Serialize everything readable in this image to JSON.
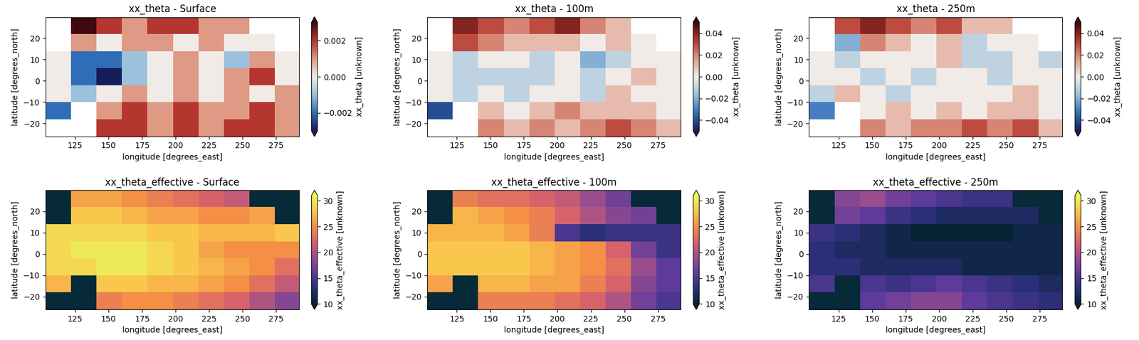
{
  "chart_data": [
    {
      "type": "heatmap",
      "title": "xx_theta - Surface",
      "x_label": "longitude [degrees_east]",
      "y_label": "latitude [degrees_north]",
      "xlim": [
        103,
        292
      ],
      "ylim": [
        -26,
        30
      ],
      "xticks": [
        125,
        150,
        175,
        200,
        225,
        250,
        275
      ],
      "yticks": [
        {
          "value": -20,
          "label": "−20"
        },
        {
          "value": -10,
          "label": "−10"
        },
        0,
        10,
        20
      ],
      "x": [
        103,
        122,
        141,
        160,
        179,
        198,
        217,
        236,
        255,
        274,
        292
      ],
      "y": [
        -26,
        -18,
        -10,
        -2,
        6,
        14,
        22,
        30
      ],
      "cells": [
        [
          null,
          null,
          0.002,
          0.002,
          0.001,
          0.002,
          0.001,
          0.002,
          0.002,
          0.001
        ],
        [
          -0.002,
          null,
          0.001,
          0.002,
          0.001,
          0.002,
          0.001,
          0.001,
          0.002,
          0.001
        ],
        [
          0.0,
          -0.001,
          0.0,
          0.001,
          0.0,
          0.001,
          0.0,
          0.001,
          0.0,
          0.001
        ],
        [
          0.0,
          -0.002,
          -0.003,
          -0.001,
          0.0,
          0.001,
          0.0,
          0.001,
          0.002,
          0.0
        ],
        [
          0.0,
          -0.002,
          -0.002,
          -0.001,
          0.0,
          0.001,
          0.0,
          -0.001,
          0.001,
          0.0
        ],
        [
          null,
          0.001,
          0.0,
          0.001,
          0.001,
          0.0,
          0.001,
          0.0,
          0.0,
          null
        ],
        [
          null,
          0.003,
          0.002,
          0.001,
          0.002,
          0.002,
          0.001,
          0.001,
          null,
          null
        ]
      ],
      "colorbar": {
        "label": "xx_theta [unknown]",
        "range": [
          -0.003,
          0.003
        ],
        "ticks": [
          {
            "value": -0.002,
            "label": "−0.002"
          },
          {
            "value": 0,
            "label": "0.000"
          },
          0.002
        ]
      }
    },
    {
      "type": "heatmap",
      "title": "xx_theta - 100m",
      "x_label": "longitude [degrees_east]",
      "y_label": "latitude [degrees_north]",
      "xlim": [
        103,
        292
      ],
      "ylim": [
        -26,
        30
      ],
      "xticks": [
        125,
        150,
        175,
        200,
        225,
        250,
        275
      ],
      "yticks": [
        {
          "value": -20,
          "label": "−20"
        },
        {
          "value": -10,
          "label": "−10"
        },
        0,
        10,
        20
      ],
      "x": [
        103,
        122,
        141,
        160,
        179,
        198,
        217,
        236,
        255,
        274,
        292
      ],
      "y": [
        -26,
        -18,
        -10,
        -2,
        6,
        14,
        22,
        30
      ],
      "cells": [
        [
          null,
          null,
          0.02,
          0.01,
          0.02,
          0.01,
          0.02,
          0.03,
          0.02,
          0.01
        ],
        [
          -0.04,
          null,
          0.01,
          0.0,
          0.01,
          0.02,
          0.01,
          0.01,
          0.01,
          0.0
        ],
        [
          0.0,
          -0.01,
          0.0,
          -0.01,
          0.0,
          0.0,
          -0.01,
          0.01,
          0.0,
          0.0
        ],
        [
          0.0,
          -0.01,
          -0.01,
          -0.01,
          -0.01,
          0.0,
          -0.01,
          0.0,
          0.01,
          0.0
        ],
        [
          0.0,
          -0.01,
          0.0,
          0.0,
          -0.01,
          0.0,
          -0.02,
          -0.01,
          0.0,
          0.0
        ],
        [
          null,
          0.03,
          0.02,
          0.01,
          0.01,
          0.01,
          0.0,
          0.01,
          0.0,
          null
        ],
        [
          null,
          0.04,
          0.03,
          0.02,
          0.03,
          0.04,
          0.02,
          0.01,
          null,
          null
        ]
      ],
      "colorbar": {
        "label": "xx_theta [unknown]",
        "range": [
          -0.05,
          0.05
        ],
        "ticks": [
          {
            "value": -0.04,
            "label": "−0.04"
          },
          {
            "value": -0.02,
            "label": "−0.02"
          },
          {
            "value": 0,
            "label": "0.00"
          },
          0.02,
          0.04
        ]
      }
    },
    {
      "type": "heatmap",
      "title": "xx_theta - 250m",
      "x_label": "longitude [degrees_east]",
      "y_label": "latitude [degrees_north]",
      "xlim": [
        103,
        292
      ],
      "ylim": [
        -26,
        30
      ],
      "xticks": [
        125,
        150,
        175,
        200,
        225,
        250,
        275
      ],
      "yticks": [
        {
          "value": -20,
          "label": "−20"
        },
        {
          "value": -10,
          "label": "−10"
        },
        0,
        10,
        20
      ],
      "x": [
        103,
        122,
        141,
        160,
        179,
        198,
        217,
        236,
        255,
        274,
        292
      ],
      "y": [
        -26,
        -18,
        -10,
        -2,
        6,
        14,
        22,
        30
      ],
      "cells": [
        [
          null,
          null,
          0.02,
          0.01,
          0.02,
          0.02,
          0.03,
          0.02,
          0.03,
          0.01
        ],
        [
          -0.03,
          null,
          0.0,
          0.01,
          0.0,
          0.01,
          0.0,
          0.01,
          0.01,
          0.0
        ],
        [
          -0.01,
          0.01,
          0.0,
          -0.01,
          0.0,
          0.0,
          0.0,
          0.0,
          0.01,
          0.0
        ],
        [
          0.0,
          0.0,
          -0.01,
          0.0,
          -0.01,
          0.0,
          0.0,
          -0.01,
          0.0,
          0.0
        ],
        [
          0.0,
          -0.01,
          0.0,
          0.0,
          0.0,
          0.01,
          -0.01,
          -0.01,
          0.0,
          -0.01
        ],
        [
          null,
          -0.02,
          0.02,
          0.01,
          0.0,
          0.01,
          -0.01,
          0.0,
          0.0,
          null
        ],
        [
          null,
          0.03,
          0.04,
          0.03,
          0.02,
          0.03,
          0.01,
          0.01,
          null,
          null
        ]
      ],
      "colorbar": {
        "label": "xx_theta [unknown]",
        "range": [
          -0.05,
          0.05
        ],
        "ticks": [
          {
            "value": -0.04,
            "label": "−0.04"
          },
          {
            "value": -0.02,
            "label": "−0.02"
          },
          {
            "value": 0,
            "label": "0.00"
          },
          0.02,
          0.04
        ]
      }
    },
    {
      "type": "heatmap",
      "title": "xx_theta_effective - Surface",
      "x_label": "longitude [degrees_east]",
      "y_label": "latitude [degrees_north]",
      "xlim": [
        103,
        292
      ],
      "ylim": [
        -26,
        30
      ],
      "xticks": [
        125,
        150,
        175,
        200,
        225,
        250,
        275
      ],
      "yticks": [
        {
          "value": -20,
          "label": "−20"
        },
        {
          "value": -10,
          "label": "−10"
        },
        0,
        10,
        20
      ],
      "x": [
        103,
        122,
        141,
        160,
        179,
        198,
        217,
        236,
        255,
        274,
        292
      ],
      "y": [
        -26,
        -18,
        -10,
        -2,
        6,
        14,
        22,
        30
      ],
      "cells": [
        [
          null,
          null,
          24,
          25,
          25,
          24,
          23,
          22,
          20,
          18
        ],
        [
          27,
          null,
          28,
          28,
          27,
          27,
          26,
          25,
          23,
          21
        ],
        [
          29,
          29,
          30,
          30,
          29,
          28,
          27,
          26,
          25,
          23
        ],
        [
          29,
          30,
          30,
          30,
          29,
          28,
          26,
          25,
          25,
          25
        ],
        [
          29,
          29,
          29,
          29,
          28,
          28,
          27,
          27,
          27,
          28
        ],
        [
          null,
          28,
          28,
          27,
          26,
          26,
          25,
          25,
          26,
          null
        ],
        [
          null,
          26,
          26,
          25,
          24,
          23,
          22,
          21,
          null,
          null
        ]
      ],
      "colorbar": {
        "label": "xx_theta_effective [unknown]",
        "range": [
          10,
          31
        ],
        "ticks": [
          10,
          15,
          20,
          25,
          30
        ]
      }
    },
    {
      "type": "heatmap",
      "title": "xx_theta_effective - 100m",
      "x_label": "longitude [degrees_east]",
      "y_label": "latitude [degrees_north]",
      "xlim": [
        103,
        292
      ],
      "ylim": [
        -26,
        30
      ],
      "xticks": [
        125,
        150,
        175,
        200,
        225,
        250,
        275
      ],
      "yticks": [
        {
          "value": -20,
          "label": "−20"
        },
        {
          "value": -10,
          "label": "−10"
        },
        0,
        10,
        20
      ],
      "x": [
        103,
        122,
        141,
        160,
        179,
        198,
        217,
        236,
        255,
        274,
        292
      ],
      "y": [
        -26,
        -18,
        -10,
        -2,
        6,
        14,
        22,
        30
      ],
      "cells": [
        [
          null,
          null,
          24,
          24,
          24,
          23,
          22,
          20,
          17,
          15
        ],
        [
          26,
          null,
          27,
          27,
          26,
          26,
          24,
          22,
          18,
          16
        ],
        [
          28,
          28,
          28,
          28,
          27,
          26,
          25,
          23,
          19,
          16
        ],
        [
          28,
          28,
          28,
          28,
          27,
          26,
          25,
          22,
          17,
          14
        ],
        [
          27,
          27,
          27,
          26,
          24,
          15,
          13,
          14,
          14,
          14
        ],
        [
          null,
          27,
          26,
          25,
          24,
          22,
          20,
          18,
          17,
          null
        ],
        [
          null,
          24,
          23,
          23,
          22,
          21,
          19,
          17,
          null,
          null
        ]
      ],
      "colorbar": {
        "label": "xx_theta_effective [unknown]",
        "range": [
          10,
          31
        ],
        "ticks": [
          10,
          15,
          20,
          25,
          30
        ]
      }
    },
    {
      "type": "heatmap",
      "title": "xx_theta_effective - 250m",
      "x_label": "longitude [degrees_east]",
      "y_label": "latitude [degrees_north]",
      "xlim": [
        103,
        292
      ],
      "ylim": [
        -26,
        30
      ],
      "xticks": [
        125,
        150,
        175,
        200,
        225,
        250,
        275
      ],
      "yticks": [
        {
          "value": -20,
          "label": "−20"
        },
        {
          "value": -10,
          "label": "−10"
        },
        0,
        10,
        20
      ],
      "x": [
        103,
        122,
        141,
        160,
        179,
        198,
        217,
        236,
        255,
        274,
        292
      ],
      "y": [
        -26,
        -18,
        -10,
        -2,
        6,
        14,
        22,
        30
      ],
      "cells": [
        [
          null,
          null,
          16,
          17,
          18,
          18,
          16,
          15,
          14,
          13
        ],
        [
          15,
          null,
          15,
          14,
          15,
          16,
          15,
          14,
          13,
          12
        ],
        [
          13,
          13,
          12,
          12,
          12,
          12,
          11,
          11,
          11,
          11
        ],
        [
          13,
          12,
          12,
          11,
          11,
          11,
          11,
          11,
          11,
          11
        ],
        [
          14,
          13,
          12,
          11,
          10,
          10,
          10,
          10,
          11,
          11
        ],
        [
          null,
          17,
          16,
          14,
          13,
          12,
          12,
          12,
          12,
          null
        ],
        [
          null,
          18,
          19,
          17,
          16,
          15,
          14,
          14,
          null,
          null
        ]
      ],
      "colorbar": {
        "label": "xx_theta_effective [unknown]",
        "range": [
          10,
          31
        ],
        "ticks": [
          10,
          15,
          20,
          25,
          30
        ]
      }
    }
  ]
}
